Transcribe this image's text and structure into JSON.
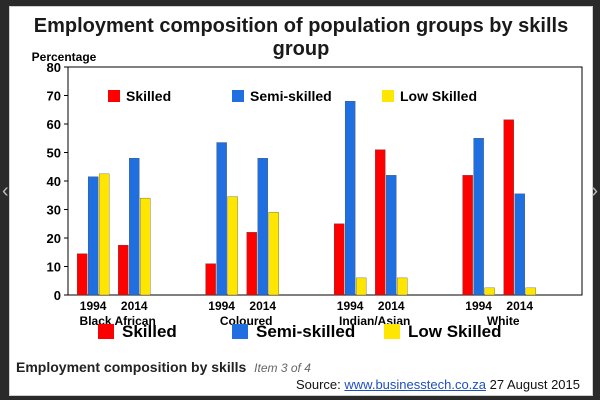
{
  "title": "Employment composition of population groups by skills group",
  "caption": {
    "text": "Employment composition by skills",
    "item": "Item 3 of 4"
  },
  "source": {
    "prefix": "Source:",
    "link": "www.businesstech.co.za",
    "date": "27 August 2015"
  },
  "colors": {
    "skilled": "#ff0000",
    "semi": "#1f6fe0",
    "low": "#ffe600"
  },
  "chart_data": {
    "type": "bar",
    "ylabel": "Percentage",
    "ylim": [
      0,
      80
    ],
    "yticks": [
      0,
      10,
      20,
      30,
      40,
      50,
      60,
      70,
      80
    ],
    "groups": [
      {
        "name": "Black African",
        "years": [
          "1994",
          "2014"
        ]
      },
      {
        "name": "Coloured",
        "years": [
          "1994",
          "2014"
        ]
      },
      {
        "name": "Indian/Asian",
        "years": [
          "1994",
          "2014"
        ]
      },
      {
        "name": "White",
        "years": [
          "1994",
          "2014"
        ]
      }
    ],
    "categories": [
      "Black African 1994",
      "Black African 2014",
      "Coloured 1994",
      "Coloured 2014",
      "Indian/Asian 1994",
      "Indian/Asian 2014",
      "White 1994",
      "White 2014"
    ],
    "series": [
      {
        "name": "Skilled",
        "color": "#ff0000",
        "values": [
          14.5,
          17.5,
          11,
          22,
          25,
          51,
          42,
          61.5
        ]
      },
      {
        "name": "Semi-skilled",
        "color": "#1f6fe0",
        "values": [
          41.5,
          48,
          53.5,
          48,
          68,
          42,
          55,
          35.5
        ]
      },
      {
        "name": "Low Skilled",
        "color": "#ffe600",
        "values": [
          42.5,
          34,
          34.5,
          29,
          6,
          6,
          2.5,
          2.5
        ]
      }
    ],
    "legend_top": [
      "Skilled",
      "Semi-skilled",
      "Low Skilled"
    ],
    "legend_bottom": [
      "Skilled",
      "Semi-skilled",
      "Low Skilled"
    ]
  }
}
